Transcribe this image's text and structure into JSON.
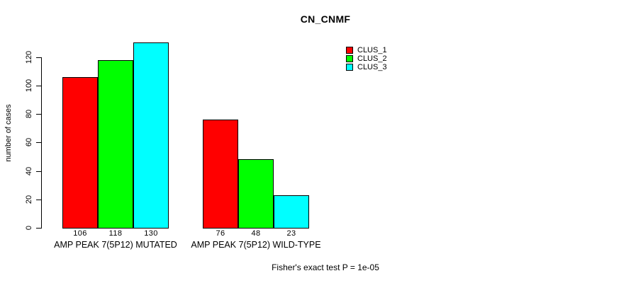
{
  "chart_data": {
    "type": "bar",
    "title": "CN_CNMF",
    "ylabel": "number of cases",
    "xlabel": "",
    "ylim": [
      0,
      130
    ],
    "yticks": [
      0,
      20,
      40,
      60,
      80,
      100,
      120
    ],
    "grid": false,
    "legend_position": "top-right",
    "show_value_labels": true,
    "categories": [
      "AMP PEAK 7(5P12) MUTATED",
      "AMP PEAK 7(5P12) WILD-TYPE"
    ],
    "series": [
      {
        "name": "CLUS_1",
        "color": "#FF0000",
        "values": [
          106,
          76
        ]
      },
      {
        "name": "CLUS_2",
        "color": "#00FF00",
        "values": [
          118,
          48
        ]
      },
      {
        "name": "CLUS_3",
        "color": "#00FFFF",
        "values": [
          130,
          23
        ]
      }
    ],
    "note": "Fisher's exact test P = 1e-05"
  },
  "colors": {
    "background": "#FFFFFF",
    "axis": "#000000",
    "text": "#000000",
    "bar_border": "#000000"
  }
}
